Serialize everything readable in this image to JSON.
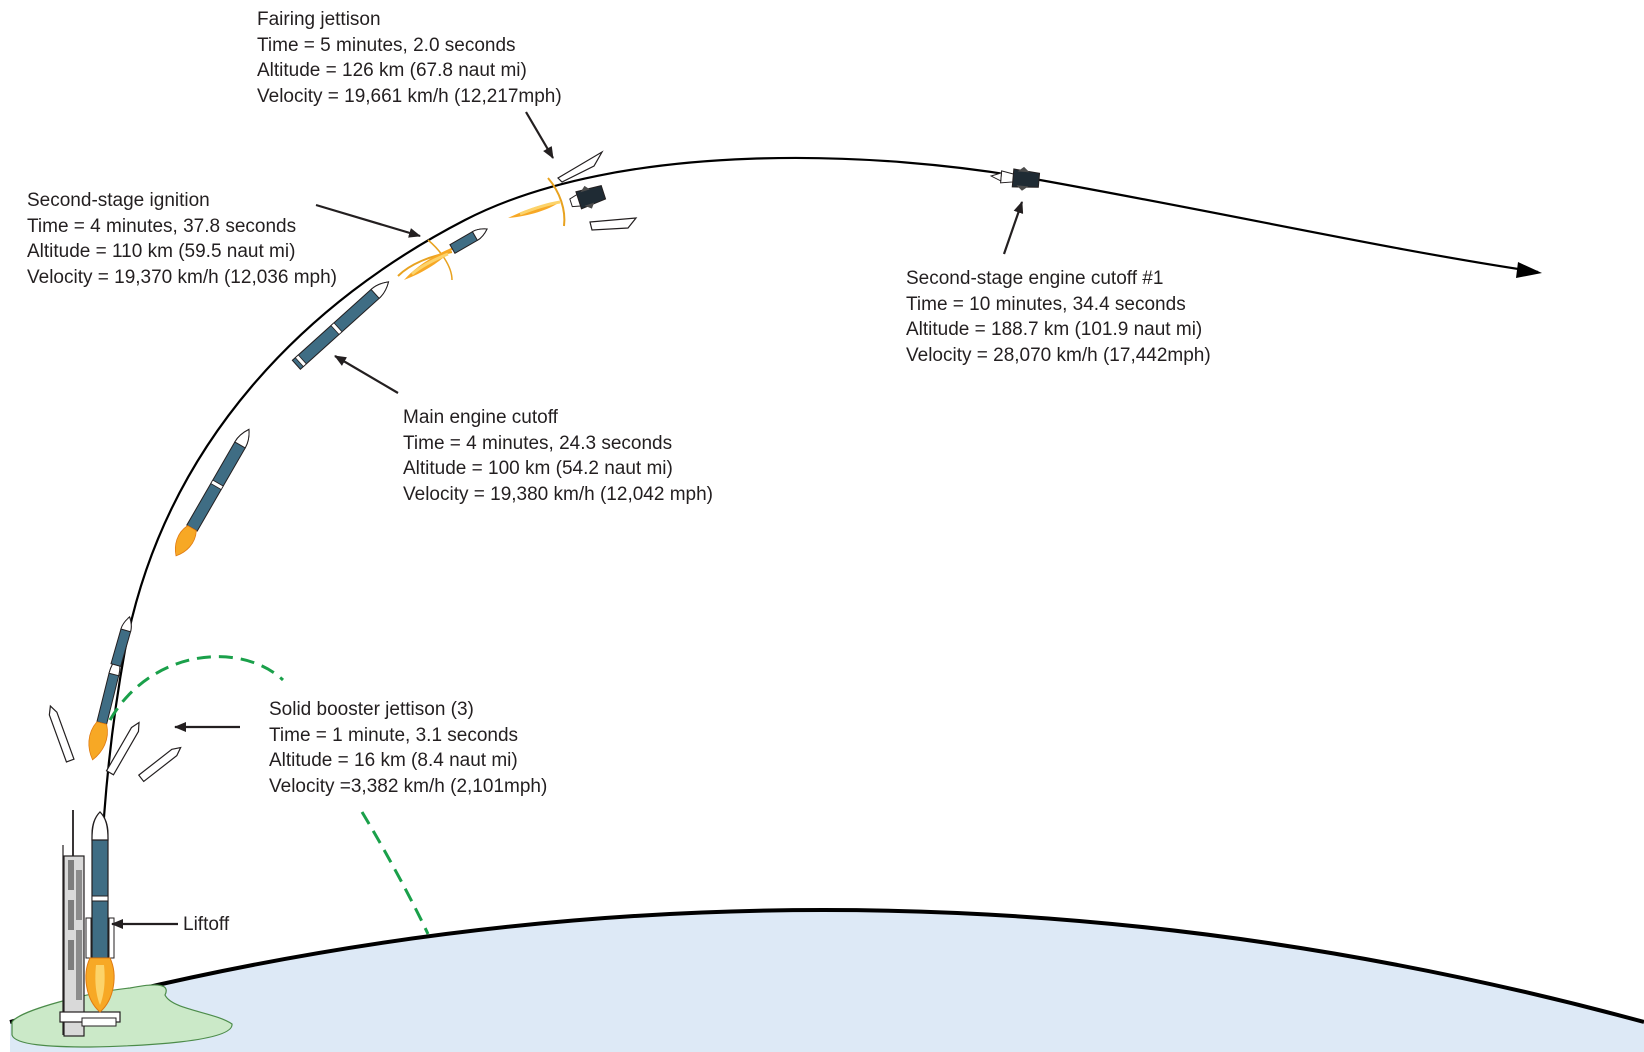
{
  "colors": {
    "trajectory": "#000000",
    "booster_path": "#1aa04a",
    "earth_fill": "#dde9f6",
    "pad_ground": "#cbe9c8",
    "rocket_body": "#3f6d84",
    "flame": "#f7a825",
    "plume_ring": "#e8a21f",
    "label_text": "#231f20"
  },
  "callouts": {
    "fairing": {
      "title": "Fairing jettison",
      "time": "Time = 5 minutes, 2.0 seconds",
      "altitude": "Altitude = 126 km (67.8 naut mi)",
      "velocity": "Velocity = 19,661 km/h (12,217mph)"
    },
    "second_ignition": {
      "title": "Second-stage ignition",
      "time": "Time = 4 minutes, 37.8 seconds",
      "altitude": "Altitude = 110 km (59.5 naut mi)",
      "velocity": "Velocity = 19,370 km/h (12,036 mph)"
    },
    "main_cutoff": {
      "title": "Main engine cutoff",
      "time": "Time = 4 minutes, 24.3 seconds",
      "altitude": "Altitude = 100 km (54.2 naut mi)",
      "velocity": "Velocity = 19,380 km/h (12,042 mph)"
    },
    "second_cutoff": {
      "title": "Second-stage engine cutoff #1",
      "time": "Time = 10 minutes, 34.4 seconds",
      "altitude": "Altitude = 188.7 km (101.9 naut mi)",
      "velocity": "Velocity = 28,070 km/h (17,442mph)"
    },
    "booster_jettison": {
      "title": "Solid booster jettison (3)",
      "time": "Time = 1 minute, 3.1 seconds",
      "altitude": "Altitude = 16 km (8.4 naut mi)",
      "velocity": "Velocity =3,382 km/h (2,101mph)"
    },
    "liftoff": {
      "title": "Liftoff"
    }
  },
  "icons": {
    "launch_tower": "launch-tower-icon",
    "rocket": "rocket-icon",
    "booster": "solid-booster-icon",
    "fairing_half": "fairing-half-icon",
    "upper_stage": "upper-stage-icon",
    "flame": "flame-icon"
  }
}
